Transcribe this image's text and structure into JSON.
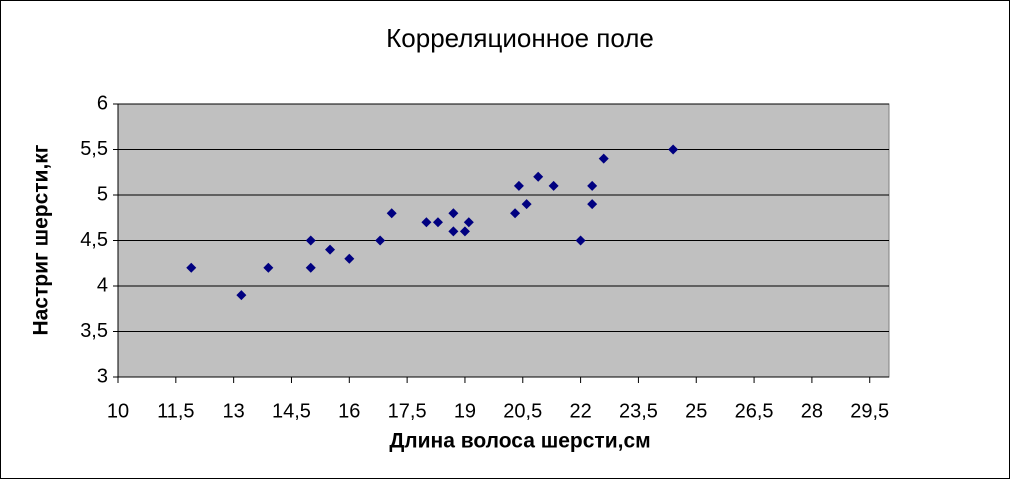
{
  "chart_data": {
    "type": "scatter",
    "title": "Корреляционное поле",
    "x_label": "Длина волоса шерсти,см",
    "y_label": "Настриг шерсти,кг",
    "color": "#000080",
    "grid": true,
    "xlim": [
      10,
      30
    ],
    "xticks": [
      10,
      {
        "value": 11.5,
        "label": "11,5"
      },
      13,
      {
        "value": 14.5,
        "label": "14,5"
      },
      16,
      {
        "value": 17.5,
        "label": "17,5"
      },
      19,
      {
        "value": 20.5,
        "label": "20,5"
      },
      22,
      {
        "value": 23.5,
        "label": "23,5"
      },
      25,
      {
        "value": 26.5,
        "label": "26,5"
      },
      28,
      {
        "value": 29.5,
        "label": "29,5"
      }
    ],
    "ylim": [
      3,
      6
    ],
    "yticks": [
      3,
      {
        "value": 3.5,
        "label": "3,5"
      },
      4,
      {
        "value": 4.5,
        "label": "4,5"
      },
      5,
      {
        "value": 5.5,
        "label": "5,5"
      },
      6
    ],
    "x": [
      11.9,
      13.2,
      13.9,
      15.0,
      15.0,
      15.5,
      16.0,
      16.8,
      17.1,
      18.0,
      18.3,
      18.7,
      18.7,
      19.0,
      19.1,
      20.3,
      20.4,
      20.6,
      20.9,
      21.3,
      22.0,
      22.3,
      22.3,
      22.6,
      24.4
    ],
    "y": [
      4.2,
      3.9,
      4.2,
      4.5,
      4.2,
      4.4,
      4.3,
      4.5,
      4.8,
      4.7,
      4.7,
      4.8,
      4.6,
      4.6,
      4.7,
      4.8,
      5.1,
      4.9,
      5.2,
      5.1,
      4.5,
      5.1,
      4.9,
      5.4,
      5.5
    ]
  }
}
